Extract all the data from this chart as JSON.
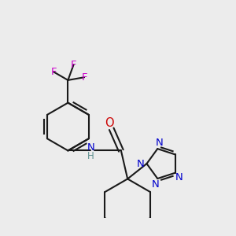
{
  "background_color": "#ececec",
  "bond_color": "#1a1a1a",
  "N_color": "#0000cc",
  "O_color": "#cc0000",
  "F_color": "#cc00cc",
  "H_color": "#5f9090",
  "figsize": [
    3.0,
    3.0
  ],
  "dpi": 100,
  "xlim": [
    -0.5,
    5.5
  ],
  "ylim": [
    -1.0,
    4.5
  ]
}
